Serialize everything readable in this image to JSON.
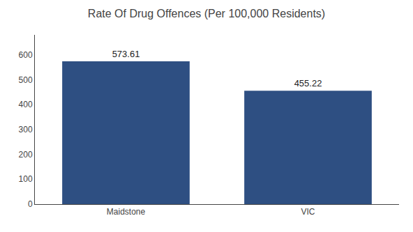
{
  "chart_data": {
    "type": "bar",
    "title": "Rate Of Drug Offences (Per 100,000 Residents)",
    "categories": [
      "Maidstone",
      "VIC"
    ],
    "values": [
      573.61,
      455.22
    ],
    "color": "#2e4f82",
    "ylim": [
      0,
      680
    ],
    "yticks": [
      0,
      100,
      200,
      300,
      400,
      500,
      600
    ],
    "grid": false,
    "data_labels": true
  }
}
